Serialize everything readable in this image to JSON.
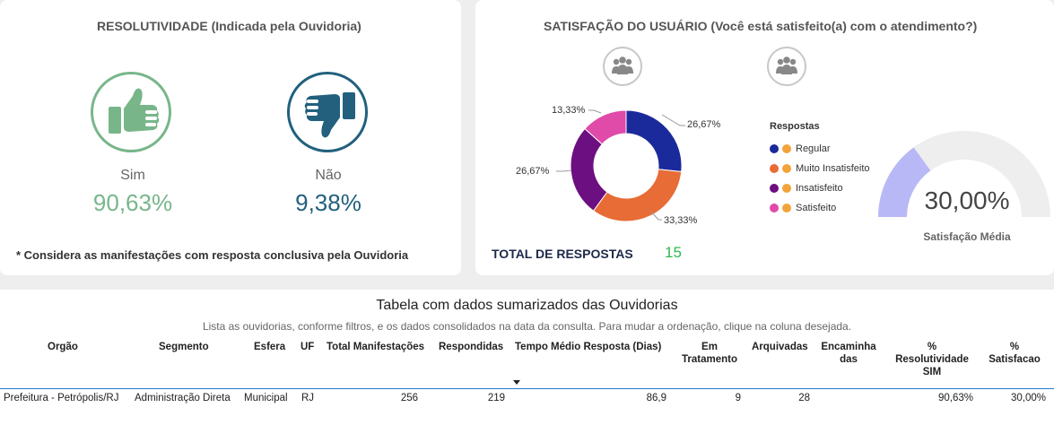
{
  "resolutividade": {
    "title": "RESOLUTIVIDADE (Indicada pela Ouvidoria)",
    "sim": {
      "label": "Sim",
      "value": "90,63%",
      "color": "#78b68a",
      "icon": "thumbs-up-icon"
    },
    "nao": {
      "label": "Não",
      "value": "9,38%",
      "color": "#22607e",
      "icon": "thumbs-down-icon"
    },
    "footnote": "* Considera as manifestações com resposta conclusiva pela Ouvidoria"
  },
  "satisfacao": {
    "title": "SATISFAÇÃO DO USUÁRIO (Você está satisfeito(a) com o atendimento?)",
    "icons": [
      "people-icon",
      "people-icon"
    ],
    "total_label": "TOTAL DE RESPOSTAS",
    "total_value": "15",
    "gauge_value": "30,00%",
    "gauge_label": "Satisfação Média",
    "gauge_fraction": 0.3
  },
  "chart_data": {
    "type": "pie",
    "title": "",
    "legend_title": "Respostas",
    "legend_position": "right",
    "slices": [
      {
        "name": "Regular",
        "value": 26.67,
        "label": "26,67%",
        "color": "#1b2a9a"
      },
      {
        "name": "Muito Insatisfeito",
        "value": 33.33,
        "label": "33,33%",
        "color": "#e86c35"
      },
      {
        "name": "Insatisfeito",
        "value": 26.67,
        "label": "26,67%",
        "color": "#6c0f80"
      },
      {
        "name": "Satisfeito",
        "value": 13.33,
        "label": "13,33%",
        "color": "#e04aa8"
      }
    ]
  },
  "table": {
    "title": "Tabela com dados sumarizados das Ouvidorias",
    "subtitle": "Lista as ouvidorias, conforme filtros, e os dados consolidados na data da consulta. Para mudar a ordenação, clique na coluna desejada.",
    "headers": {
      "orgao": "Orgão",
      "segmento": "Segmento",
      "esfera": "Esfera",
      "uf": "UF",
      "total": "Total Manifestações",
      "respondidas": "Respondidas",
      "tempo": "Tempo Médio Resposta (Dias)",
      "em_tratamento_1": "Em",
      "em_tratamento_2": "Tratamento",
      "arquivadas": "Arquivadas",
      "encaminhadas_1": "Encaminha",
      "encaminhadas_2": "das",
      "resolutividade_1": "%",
      "resolutividade_2": "Resolutividade",
      "resolutividade_3": "SIM",
      "satisfacao_1": "%",
      "satisfacao_2": "Satisfacao"
    },
    "rows": [
      {
        "orgao": "Prefeitura - Petrópolis/RJ",
        "segmento": "Administração Direta",
        "esfera": "Municipal",
        "uf": "RJ",
        "total": "256",
        "respondidas": "219",
        "tempo": "86,9",
        "em_tratamento": "9",
        "arquivadas": "28",
        "encaminhadas": "",
        "resolutividade": "90,63%",
        "satisfacao": "30,00%"
      }
    ]
  }
}
